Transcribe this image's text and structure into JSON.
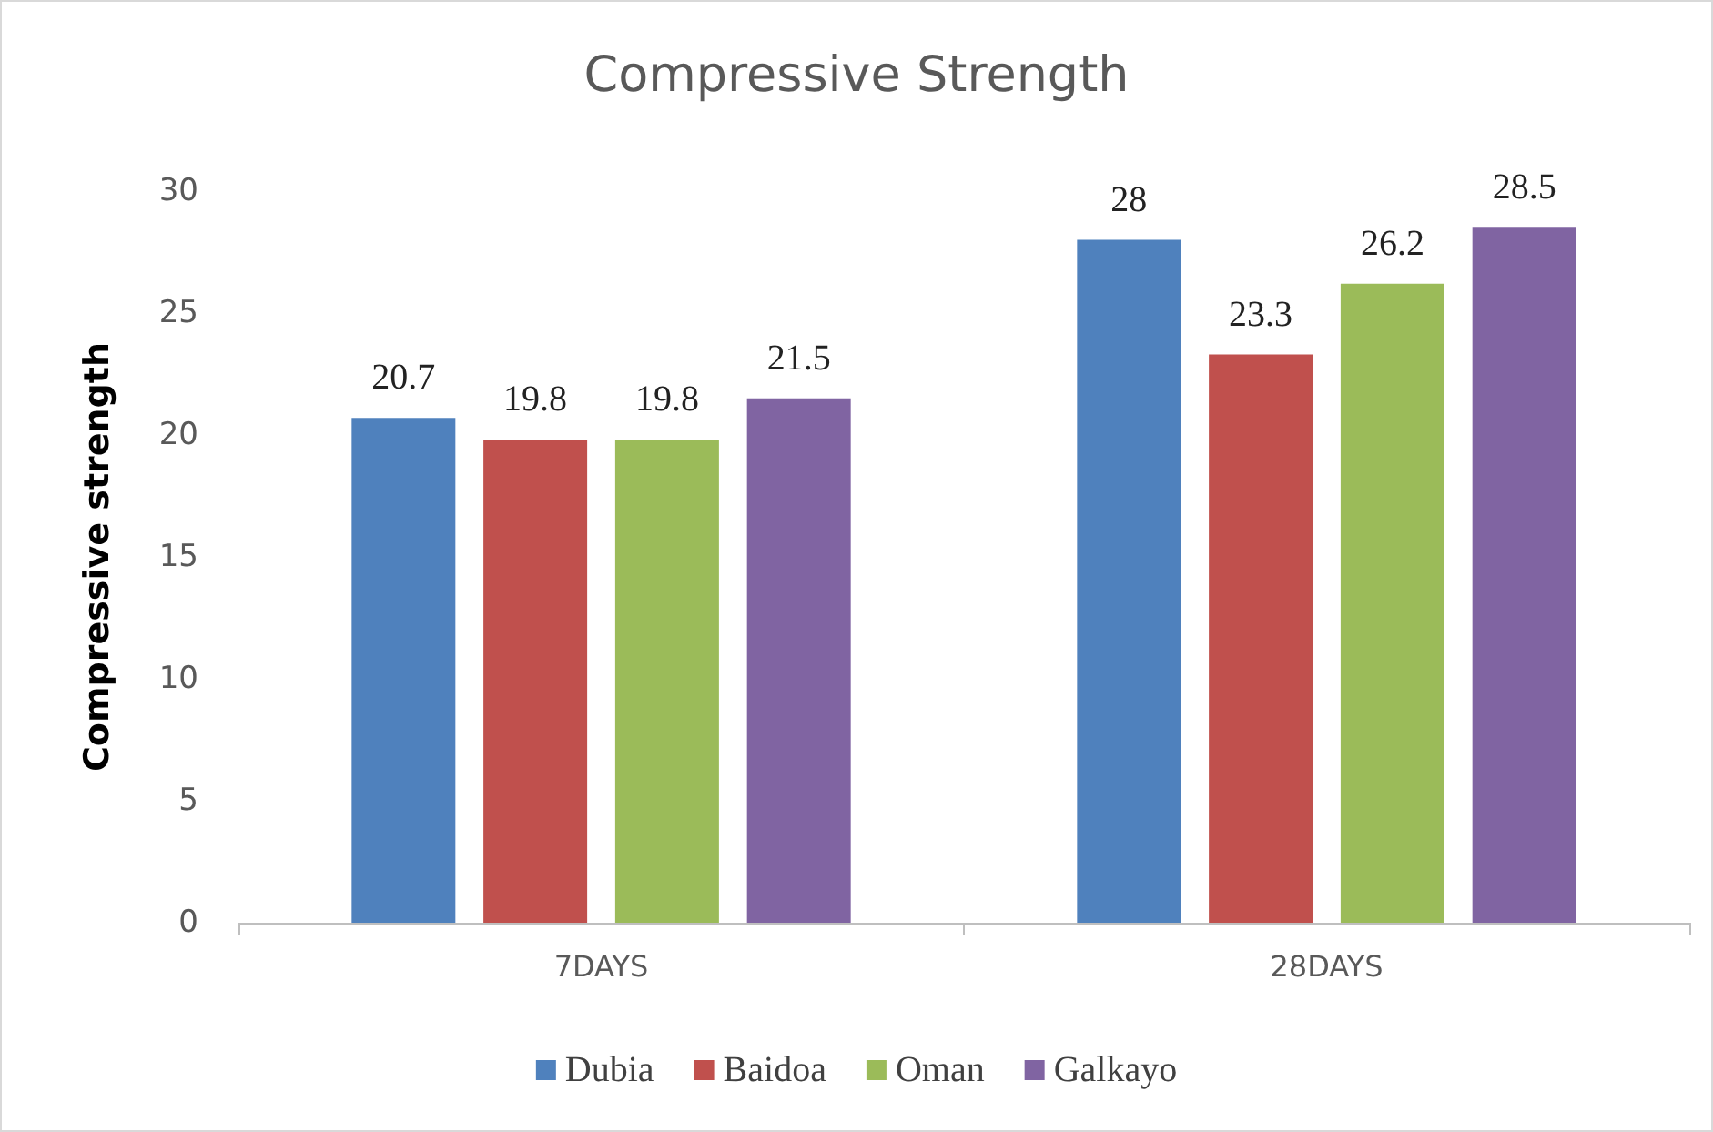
{
  "chart_data": {
    "type": "bar",
    "title": "Compressive Strength",
    "ylabel": "Compressive strength",
    "categories": [
      "7DAYS",
      "28DAYS"
    ],
    "series": [
      {
        "name": "Dubia",
        "color": "#4f81bd",
        "values": [
          20.7,
          28
        ]
      },
      {
        "name": "Baidoa",
        "color": "#c0504d",
        "values": [
          19.8,
          23.3
        ]
      },
      {
        "name": "Oman",
        "color": "#9bbb59",
        "values": [
          19.8,
          26.2
        ]
      },
      {
        "name": "Galkayo",
        "color": "#8064a2",
        "values": [
          21.5,
          28.5
        ]
      }
    ],
    "ylim": [
      0,
      30
    ],
    "yticks": [
      0,
      5,
      10,
      15,
      20,
      25,
      30
    ],
    "grid": false,
    "legend": "bottom",
    "data_labels": true
  }
}
